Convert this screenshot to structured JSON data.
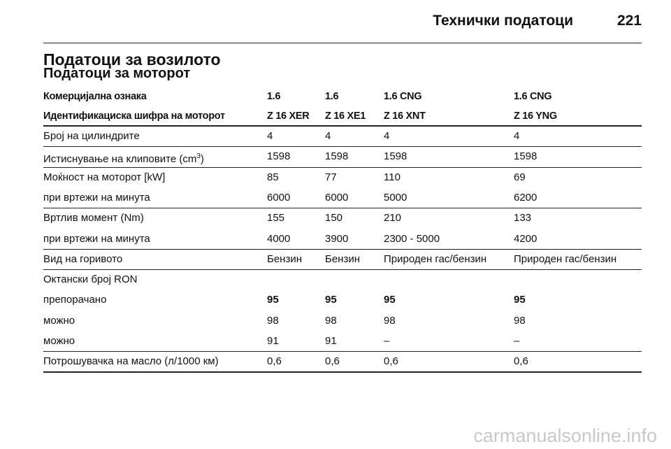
{
  "header": {
    "title": "Технички податоци",
    "page": "221"
  },
  "section_title": "Податоци за возилото",
  "subtitle": "Податоци за моторот",
  "table": {
    "head": [
      [
        "Комерцијална ознака",
        "1.6",
        "1.6",
        "1.6 CNG",
        "1.6 CNG"
      ],
      [
        "Идентификациска шифра на моторот",
        "Z 16 XER",
        "Z 16 XE1",
        "Z 16 XNT",
        "Z 16 YNG"
      ]
    ],
    "groups": [
      [
        {
          "cells": [
            "Број на цилиндрите",
            "4",
            "4",
            "4",
            "4"
          ]
        }
      ],
      [
        {
          "cells": [
            {
              "text": "Истиснување на клиповите (cm",
              "sup": "3",
              "after": ")"
            },
            "1598",
            "1598",
            "1598",
            "1598"
          ]
        }
      ],
      [
        {
          "cells": [
            "Моќност на моторот [kW]",
            "85",
            "77",
            "110",
            "69"
          ]
        },
        {
          "cells": [
            "при вртежи на минута",
            "6000",
            "6000",
            "5000",
            "6200"
          ]
        }
      ],
      [
        {
          "cells": [
            "Вртлив момент (Nm)",
            "155",
            "150",
            "210",
            "133"
          ]
        },
        {
          "cells": [
            "при вртежи на минута",
            "4000",
            "3900",
            "2300 - 5000",
            "4200"
          ]
        }
      ],
      [
        {
          "cells": [
            "Вид на горивото",
            "Бензин",
            "Бензин",
            "Природен гас/бензин",
            "Природен гас/бензин"
          ]
        }
      ],
      [
        {
          "cells": [
            "Октански број RON"
          ]
        },
        {
          "cells": [
            "препорачано",
            "95",
            "95",
            "95",
            "95"
          ],
          "bold": true
        },
        {
          "cells": [
            "можно",
            "98",
            "98",
            "98",
            "98"
          ]
        },
        {
          "cells": [
            "можно",
            "91",
            "91",
            "–",
            "–"
          ]
        }
      ],
      [
        {
          "cells": [
            "Потрошувачка на масло (л/1000 км)",
            "0,6",
            "0,6",
            "0,6",
            "0,6"
          ]
        }
      ]
    ]
  },
  "watermark": "carmanualsonline.info"
}
